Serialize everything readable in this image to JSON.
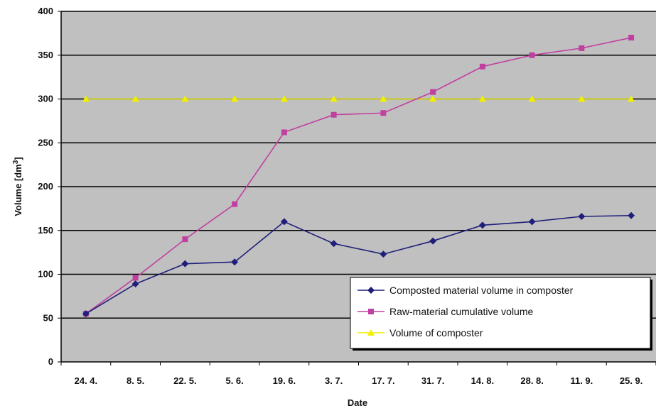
{
  "chart_data": {
    "type": "line",
    "title": "",
    "xlabel": "Date",
    "ylabel": "Volume [dm",
    "ylabel_superscript": "3",
    "ylabel_suffix": "]",
    "categories": [
      "24. 4.",
      "8. 5.",
      "22. 5.",
      "5. 6.",
      "19. 6.",
      "3. 7.",
      "17. 7.",
      "31. 7.",
      "14. 8.",
      "28. 8.",
      "11. 9.",
      "25. 9."
    ],
    "ylim": [
      0,
      400
    ],
    "yticks": [
      0,
      50,
      100,
      150,
      200,
      250,
      300,
      350,
      400
    ],
    "grid": true,
    "legend_position": "lower-right",
    "series": [
      {
        "name": "Composted material volume in composter",
        "color": "#1f1f7a",
        "marker": "diamond",
        "values": [
          55,
          89,
          112,
          114,
          160,
          135,
          123,
          138,
          156,
          160,
          166,
          167
        ]
      },
      {
        "name": "Raw-material cumulative volume",
        "color": "#c040a0",
        "marker": "square",
        "values": [
          55,
          96,
          140,
          180,
          262,
          282,
          284,
          308,
          337,
          350,
          358,
          370
        ]
      },
      {
        "name": "Volume of composter",
        "color": "#f0f000",
        "marker": "triangle",
        "values": [
          300,
          300,
          300,
          300,
          300,
          300,
          300,
          300,
          300,
          300,
          300,
          300
        ]
      }
    ]
  }
}
